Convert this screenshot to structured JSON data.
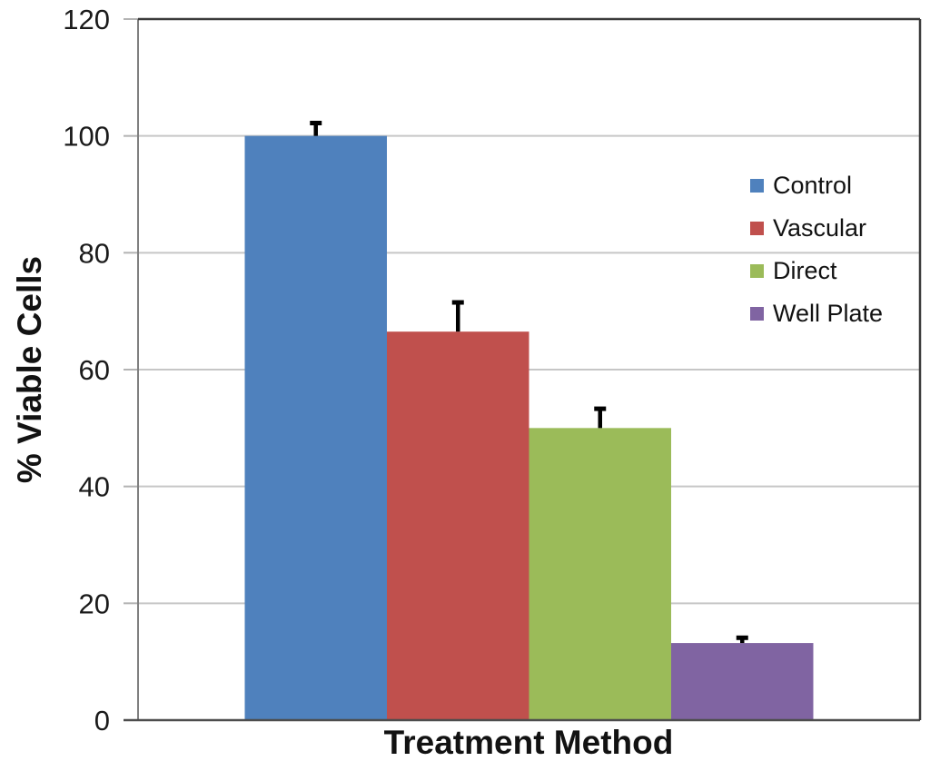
{
  "chart_data": {
    "type": "bar",
    "title": "",
    "xlabel": "Treatment Method",
    "ylabel": "% Viable Cells",
    "categories": [
      "Control",
      "Vascular",
      "Direct",
      "Well Plate"
    ],
    "values": [
      100,
      66.5,
      50,
      13.2
    ],
    "errors_plus": [
      2.2,
      5,
      3.3,
      0.9
    ],
    "bar_colors": [
      "#4F81BD",
      "#C0504D",
      "#9BBB59",
      "#8064A2"
    ],
    "ylim": [
      0,
      120
    ],
    "yticks": [
      0,
      20,
      40,
      60,
      80,
      100,
      120
    ],
    "grid": true,
    "legend_position": "inside-right",
    "legend": [
      {
        "label": "Control",
        "color": "#4F81BD"
      },
      {
        "label": "Vascular",
        "color": "#C0504D"
      },
      {
        "label": "Direct",
        "color": "#9BBB59"
      },
      {
        "label": "Well Plate",
        "color": "#8064A2"
      }
    ],
    "error_bar_color": "#000000",
    "tick_label_color": "#1a1a1a",
    "axis_color": "#808080",
    "x_axis_color": "#4d4d4d",
    "border_color": "#3a3a3a",
    "gridline_color": "#c6c6c6",
    "tick_mark_color": "#b3b3b3"
  }
}
